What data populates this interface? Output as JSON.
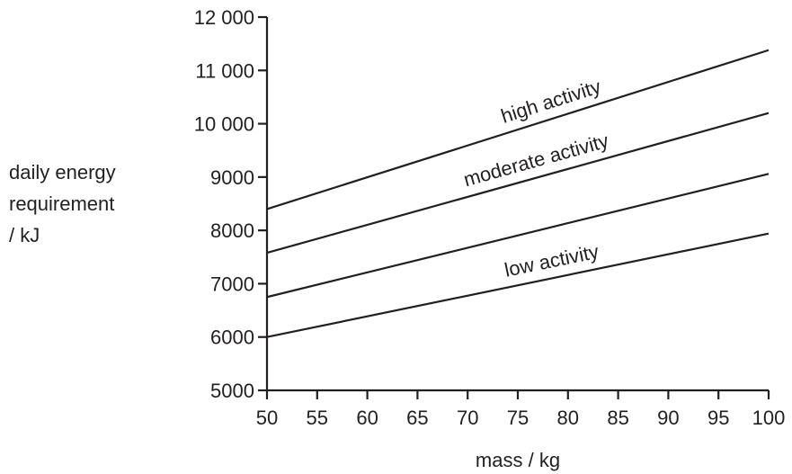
{
  "chart_data": {
    "type": "line",
    "title": "",
    "xlabel": "mass / kg",
    "ylabel_lines": [
      "daily energy",
      "requirement",
      "/ kJ"
    ],
    "xlim": [
      50,
      100
    ],
    "ylim": [
      5000,
      12000
    ],
    "x_ticks": [
      50,
      55,
      60,
      65,
      70,
      75,
      80,
      85,
      90,
      95,
      100
    ],
    "x_tick_labels": [
      "50",
      "55",
      "60",
      "65",
      "70",
      "75",
      "80",
      "85",
      "90",
      "95",
      "100"
    ],
    "y_ticks": [
      5000,
      6000,
      7000,
      8000,
      9000,
      10000,
      11000,
      12000
    ],
    "y_tick_labels": [
      "5000",
      "6000",
      "7000",
      "8000",
      "9000",
      "10 000",
      "11 000",
      "12 000"
    ],
    "grid": false,
    "legend": "none",
    "series": [
      {
        "name": "high activity",
        "x": [
          50,
          100
        ],
        "values": [
          8400,
          11380
        ]
      },
      {
        "name": "moderate activity",
        "x": [
          50,
          100
        ],
        "values": [
          7580,
          10200
        ]
      },
      {
        "name": "low activity",
        "x": [
          50,
          100
        ],
        "values": [
          6000,
          7940
        ]
      },
      {
        "name": "",
        "x": [
          50,
          100
        ],
        "values": [
          6750,
          9060
        ]
      }
    ],
    "line_color": "#231f20"
  }
}
